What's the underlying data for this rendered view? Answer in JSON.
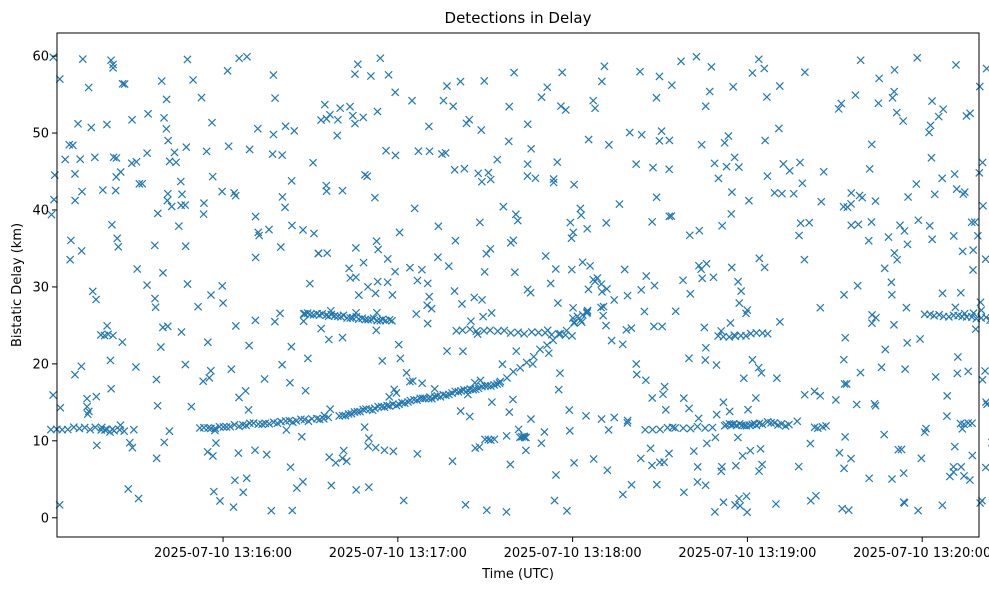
{
  "chart_data": {
    "type": "scatter",
    "title": "Detections in Delay",
    "xlabel": "Time (UTC)",
    "ylabel": "Bistatic Delay (km)",
    "x_ticks": [
      "2025-07-10 13:16:00",
      "2025-07-10 13:17:00",
      "2025-07-10 13:18:00",
      "2025-07-10 13:19:00",
      "2025-07-10 13:20:00"
    ],
    "x_tick_seconds": [
      60,
      120,
      180,
      240,
      300
    ],
    "y_ticks": [
      "0",
      "10",
      "20",
      "30",
      "40",
      "50",
      "60"
    ],
    "xlim_seconds_after_13_15": [
      3.0,
      319.5
    ],
    "ylim": [
      -2.5,
      63
    ],
    "marker": "x",
    "marker_color": "#1f77b4",
    "grid": false,
    "tracks": [
      {
        "from": [
          "13:15:01",
          11.6
        ],
        "to": [
          "13:15:22",
          11.6
        ],
        "n": 12
      },
      {
        "from": [
          "13:15:18",
          11.3
        ],
        "to": [
          "13:15:26",
          11.3
        ],
        "n": 6
      },
      {
        "from": [
          "13:15:52",
          11.6
        ],
        "to": [
          "13:16:36",
          12.9
        ],
        "n": 34
      },
      {
        "from": [
          "13:16:40",
          13.3
        ],
        "to": [
          "13:17:35",
          17.4
        ],
        "n": 55
      },
      {
        "from": [
          "13:17:35",
          17.6
        ],
        "to": [
          "13:18:05",
          26.5
        ],
        "n": 14
      },
      {
        "from": [
          "13:18:05",
          26.8
        ],
        "to": [
          "13:18:28",
          30.2
        ],
        "n": 6
      },
      {
        "from": [
          "13:16:28",
          26.6
        ],
        "to": [
          "13:16:58",
          25.6
        ],
        "n": 30
      },
      {
        "from": [
          "13:17:20",
          24.4
        ],
        "to": [
          "13:18:00",
          23.8
        ],
        "n": 18
      },
      {
        "from": [
          "13:18:00",
          26.0
        ],
        "to": [
          "13:18:05",
          26.6
        ],
        "n": 4
      },
      {
        "from": [
          "13:18:25",
          11.4
        ],
        "to": [
          "13:18:48",
          11.8
        ],
        "n": 10
      },
      {
        "from": [
          "13:18:52",
          12.0
        ],
        "to": [
          "13:19:05",
          12.2
        ],
        "n": 16
      },
      {
        "from": [
          "13:19:07",
          12.3
        ],
        "to": [
          "13:19:13",
          12.0
        ],
        "n": 6
      },
      {
        "from": [
          "13:19:23",
          11.8
        ],
        "to": [
          "13:19:27",
          11.8
        ],
        "n": 4
      },
      {
        "from": [
          "13:18:50",
          23.5
        ],
        "to": [
          "13:19:07",
          24.0
        ],
        "n": 10
      },
      {
        "from": [
          "13:20:01",
          26.5
        ],
        "to": [
          "13:20:25",
          25.8
        ],
        "n": 16
      },
      {
        "from": [
          "13:20:13",
          12.2
        ],
        "to": [
          "13:20:17",
          12.2
        ],
        "n": 4
      },
      {
        "from": [
          "13:17:30",
          10.2
        ],
        "to": [
          "13:17:33",
          10.2
        ],
        "n": 4
      },
      {
        "from": [
          "13:17:42",
          10.5
        ],
        "to": [
          "13:17:44",
          10.5
        ],
        "n": 4
      },
      {
        "from": [
          "13:15:18",
          23.8
        ],
        "to": [
          "13:15:22",
          23.8
        ],
        "n": 4
      }
    ],
    "clutter": {
      "count": 720,
      "time_range": [
        "13:15:01",
        "13:20:27"
      ],
      "delay_range": [
        0.5,
        60
      ],
      "seed": 42
    }
  }
}
